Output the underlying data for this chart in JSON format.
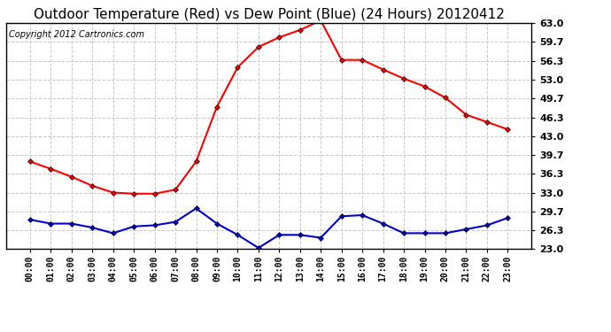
{
  "title": "Outdoor Temperature (Red) vs Dew Point (Blue) (24 Hours) 20120412",
  "copyright": "Copyright 2012 Cartronics.com",
  "x_labels": [
    "00:00",
    "01:00",
    "02:00",
    "03:00",
    "04:00",
    "05:00",
    "06:00",
    "07:00",
    "08:00",
    "09:00",
    "10:00",
    "11:00",
    "12:00",
    "13:00",
    "14:00",
    "15:00",
    "16:00",
    "17:00",
    "18:00",
    "19:00",
    "20:00",
    "21:00",
    "22:00",
    "23:00"
  ],
  "temp_red": [
    38.5,
    37.2,
    35.8,
    34.2,
    33.0,
    32.8,
    32.8,
    33.5,
    38.5,
    48.2,
    55.2,
    58.8,
    60.5,
    61.8,
    63.5,
    56.5,
    56.5,
    54.8,
    53.2,
    51.8,
    49.8,
    46.8,
    45.5,
    44.2
  ],
  "dew_blue": [
    28.2,
    27.5,
    27.5,
    26.8,
    25.8,
    27.0,
    27.2,
    27.8,
    30.2,
    27.5,
    25.5,
    23.2,
    25.5,
    25.5,
    25.0,
    28.8,
    29.0,
    27.5,
    25.8,
    25.8,
    25.8,
    26.5,
    27.2,
    28.5
  ],
  "ylim_min": 23.0,
  "ylim_max": 63.0,
  "yticks": [
    23.0,
    26.3,
    29.7,
    33.0,
    36.3,
    39.7,
    43.0,
    46.3,
    49.7,
    53.0,
    56.3,
    59.7,
    63.0
  ],
  "bg_color": "#ffffff",
  "plot_bg_color": "#ffffff",
  "grid_color": "#c8c8c8",
  "red_color": "#ff0000",
  "blue_color": "#0000cc",
  "title_fontsize": 11,
  "copyright_fontsize": 7
}
